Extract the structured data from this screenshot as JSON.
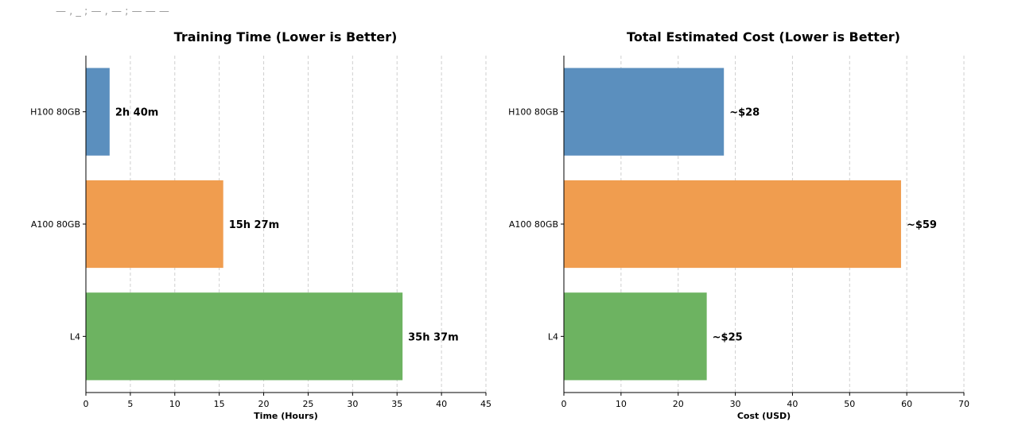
{
  "header_fragment": "— , _ ; — , — ; — — —",
  "chart_data": [
    {
      "type": "bar",
      "orientation": "horizontal",
      "title": "Training Time (Lower is Better)",
      "xlabel": "Time (Hours)",
      "ylabel": "",
      "xlim": [
        0,
        45
      ],
      "xticks": [
        0,
        5,
        10,
        15,
        20,
        25,
        30,
        35,
        40,
        45
      ],
      "grid": "x-dashed",
      "categories": [
        "H100 80GB",
        "A100 80GB",
        "L4"
      ],
      "values": [
        2.67,
        15.45,
        35.62
      ],
      "data_labels": [
        "2h 40m",
        "15h 27m",
        "35h 37m"
      ],
      "colors": [
        "#5b8fbe",
        "#f09d4f",
        "#6db361"
      ]
    },
    {
      "type": "bar",
      "orientation": "horizontal",
      "title": "Total Estimated Cost (Lower is Better)",
      "xlabel": "Cost (USD)",
      "ylabel": "",
      "xlim": [
        0,
        70
      ],
      "xticks": [
        0,
        10,
        20,
        30,
        40,
        50,
        60,
        70
      ],
      "grid": "x-dashed",
      "categories": [
        "H100 80GB",
        "A100 80GB",
        "L4"
      ],
      "values": [
        28,
        59,
        25
      ],
      "data_labels": [
        "~$28",
        "~$59",
        "~$25"
      ],
      "colors": [
        "#5b8fbe",
        "#f09d4f",
        "#6db361"
      ]
    }
  ]
}
